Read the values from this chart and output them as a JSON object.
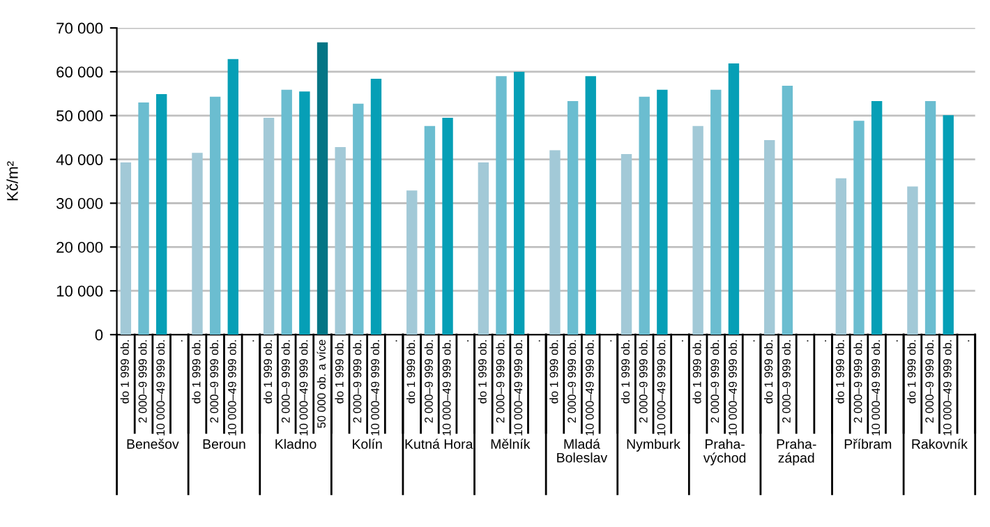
{
  "chart_data": {
    "type": "bar",
    "ylabel": "Kč/m²",
    "categories": [
      "do 1 999 ob.",
      "2 000–9 999 ob.",
      "10 000–49 999 ob.",
      ".",
      "do 1 999 ob.",
      "2 000–9 999 ob.",
      "10 000–49 999 ob.",
      ".",
      "do 1 999 ob.",
      "2 000–9 999 ob.",
      "10 000–49 999 ob.",
      "50 000 ob. a více",
      "do 1 999 ob.",
      "2 000–9 999 ob.",
      "10 000–49 999 ob.",
      ".",
      "do 1 999 ob.",
      "2 000–9 999 ob.",
      "10 000–49 999 ob.",
      ".",
      "do 1 999 ob.",
      "2 000–9 999 ob.",
      "10 000–49 999 ob.",
      ".",
      "do 1 999 ob.",
      "2 000–9 999 ob.",
      "10 000–49 999 ob.",
      ".",
      "do 1 999 ob.",
      "2 000–9 999 ob.",
      "10 000–49 999 ob.",
      ".",
      "do 1 999 ob.",
      "2 000–9 999 ob.",
      "10 000–49 999 ob.",
      ".",
      "do 1 999 ob.",
      "2 000–9 999 ob.",
      ".",
      ".",
      "do 1 999 ob.",
      "2 000–9 999 ob.",
      "10 000–49 999 ob.",
      ".",
      "do 1 999 ob.",
      "2 000–9 999 ob.",
      "10 000–49 999 ob.",
      "."
    ],
    "values": [
      39300,
      53000,
      54900,
      null,
      41500,
      54300,
      62900,
      null,
      49500,
      55900,
      55500,
      66700,
      42800,
      52700,
      58400,
      null,
      32900,
      47600,
      49500,
      null,
      39300,
      59000,
      60000,
      null,
      42100,
      53300,
      59000,
      null,
      41200,
      54300,
      55900,
      null,
      47600,
      55900,
      61900,
      null,
      44400,
      56800,
      null,
      null,
      35700,
      48800,
      53300,
      null,
      33800,
      53300,
      50100,
      null
    ],
    "colors": [
      "#a2c9d7",
      "#6bbdd0",
      "#069fb6",
      "#047585",
      "#a2c9d7",
      "#6bbdd0",
      "#069fb6",
      "#047585",
      "#a2c9d7",
      "#6bbdd0",
      "#069fb6",
      "#047585",
      "#a2c9d7",
      "#6bbdd0",
      "#069fb6",
      "#047585",
      "#a2c9d7",
      "#6bbdd0",
      "#069fb6",
      "#047585",
      "#a2c9d7",
      "#6bbdd0",
      "#069fb6",
      "#047585",
      "#a2c9d7",
      "#6bbdd0",
      "#069fb6",
      "#047585",
      "#a2c9d7",
      "#6bbdd0",
      "#069fb6",
      "#047585",
      "#a2c9d7",
      "#6bbdd0",
      "#069fb6",
      "#047585",
      "#a2c9d7",
      "#6bbdd0",
      "#069fb6",
      "#047585",
      "#a2c9d7",
      "#6bbdd0",
      "#069fb6",
      "#047585",
      "#a2c9d7",
      "#6bbdd0",
      "#069fb6",
      "#047585"
    ],
    "ylim": [
      0,
      70000
    ],
    "yticks": [
      0,
      {
        "value": 10000,
        "label": "10 000"
      },
      {
        "value": 20000,
        "label": "20 000"
      },
      {
        "value": 30000,
        "label": "30 000"
      },
      {
        "value": 40000,
        "label": "40 000"
      },
      {
        "value": 50000,
        "label": "50 000"
      },
      {
        "value": 60000,
        "label": "60 000"
      },
      {
        "value": 70000,
        "label": "70 000"
      }
    ],
    "grid": "y",
    "legend": false,
    "annotations": [
      "Benešov",
      "Beroun",
      "Kladno",
      "Kolín",
      "Kutná Hora",
      "Mělník",
      "Mladá\nBoleslav",
      "Nymburk",
      "Praha-\nvýchod",
      "Praha-\nzápad",
      "Příbram",
      "Rakovník"
    ]
  }
}
